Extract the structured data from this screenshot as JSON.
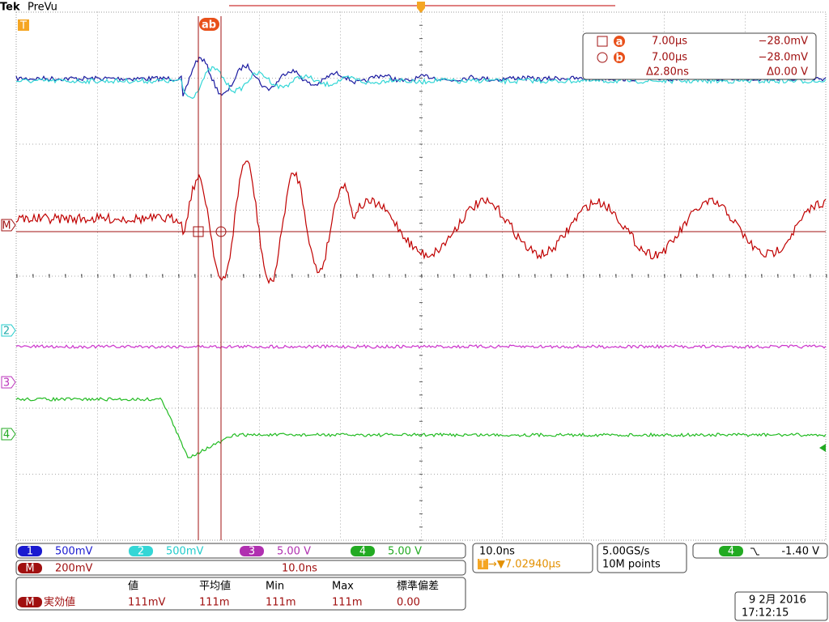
{
  "header": {
    "brand": "Tek",
    "status": "PreVu"
  },
  "markers": {
    "trigger": "T",
    "cursors": "ab",
    "math": "M",
    "ch2": "2",
    "ch3": "3",
    "ch4": "4"
  },
  "cursor_readout": {
    "a": {
      "label": "a",
      "time": "7.00µs",
      "level": "−28.0mV"
    },
    "b": {
      "label": "b",
      "time": "7.00µs",
      "level": "−28.0mV"
    },
    "delta_time": "Δ2.80ns",
    "delta_level": "Δ0.00 V"
  },
  "channels": [
    {
      "id": "1",
      "scale": "500mV"
    },
    {
      "id": "2",
      "scale": "500mV"
    },
    {
      "id": "3",
      "scale": "5.00 V"
    },
    {
      "id": "4",
      "scale": "5.00 V"
    }
  ],
  "math": {
    "id": "M",
    "scale": "200mV",
    "timebase": "10.0ns"
  },
  "horizontal": {
    "scale": "10.0ns",
    "icon": "T",
    "position": "→▼7.02940µs"
  },
  "acquisition": {
    "rate": "5.00GS/s",
    "length": "10M points"
  },
  "trigger": {
    "source": "4",
    "level": "-1.40 V"
  },
  "measurements": {
    "headers": [
      "値",
      "平均値",
      "Min",
      "Max",
      "標準偏差"
    ],
    "rows": [
      {
        "source": "M",
        "name": "実効値",
        "values": [
          "111mV",
          "111m",
          "111m",
          "111m",
          "0.00"
        ]
      }
    ]
  },
  "datetime": {
    "date": "9 2月 2016",
    "time": "17:12:15"
  }
}
